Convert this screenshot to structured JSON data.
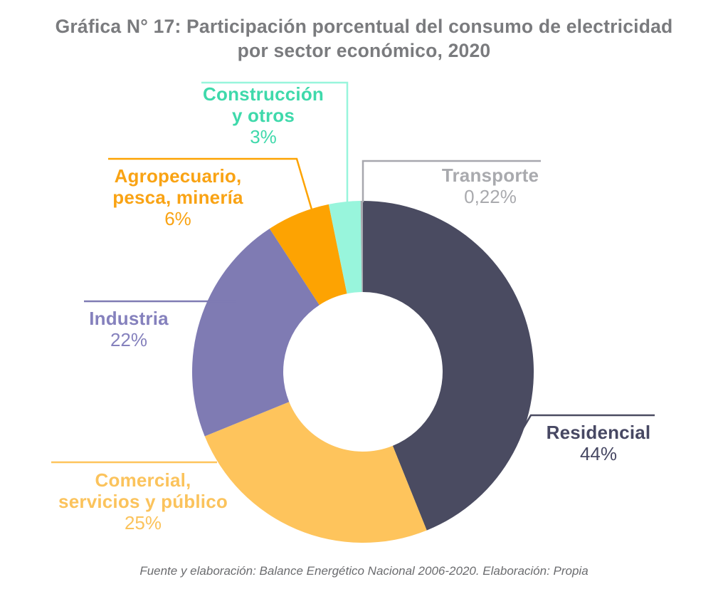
{
  "chart_data": {
    "type": "pie",
    "subtype": "donut",
    "title": "Gráfica N° 17: Participación porcentual del consumo de electricidad\npor sector económico, 2020",
    "title_color": "#7a7b7e",
    "source_note": "Fuente y elaboración: Balance Energético Nacional 2006-2020. Elaboración: Propia",
    "source_color": "#6b6c6f",
    "units": "percent",
    "legend_position": "outside-callout-labels",
    "start_angle": "top-clockwise",
    "slices": [
      {
        "id": "residencial",
        "label": "Residencial",
        "pct_label": "44%",
        "value": 44,
        "color": "#4a4b61",
        "label_color": "#474863"
      },
      {
        "id": "comercial",
        "label": "Comercial,\nservicios y público",
        "pct_label": "25%",
        "value": 25,
        "color": "#fec45c",
        "label_color": "#fbc35c"
      },
      {
        "id": "industria",
        "label": "Industria",
        "pct_label": "22%",
        "value": 22,
        "color": "#7f7bb3",
        "label_color": "#8581bd"
      },
      {
        "id": "agropecuario",
        "label": "Agropecuario,\npesca, minería",
        "pct_label": "6%",
        "value": 6,
        "color": "#fda302",
        "label_color": "#f9a314"
      },
      {
        "id": "construccion",
        "label": "Construcción\ny otros",
        "pct_label": "3%",
        "value": 3,
        "color": "#98f5dc",
        "label_color": "#3fd9ab"
      },
      {
        "id": "transporte",
        "label": "Transporte",
        "pct_label": "0,22%",
        "value": 0.22,
        "color": "#a7a7ae",
        "label_color": "#a9aaae"
      }
    ]
  }
}
